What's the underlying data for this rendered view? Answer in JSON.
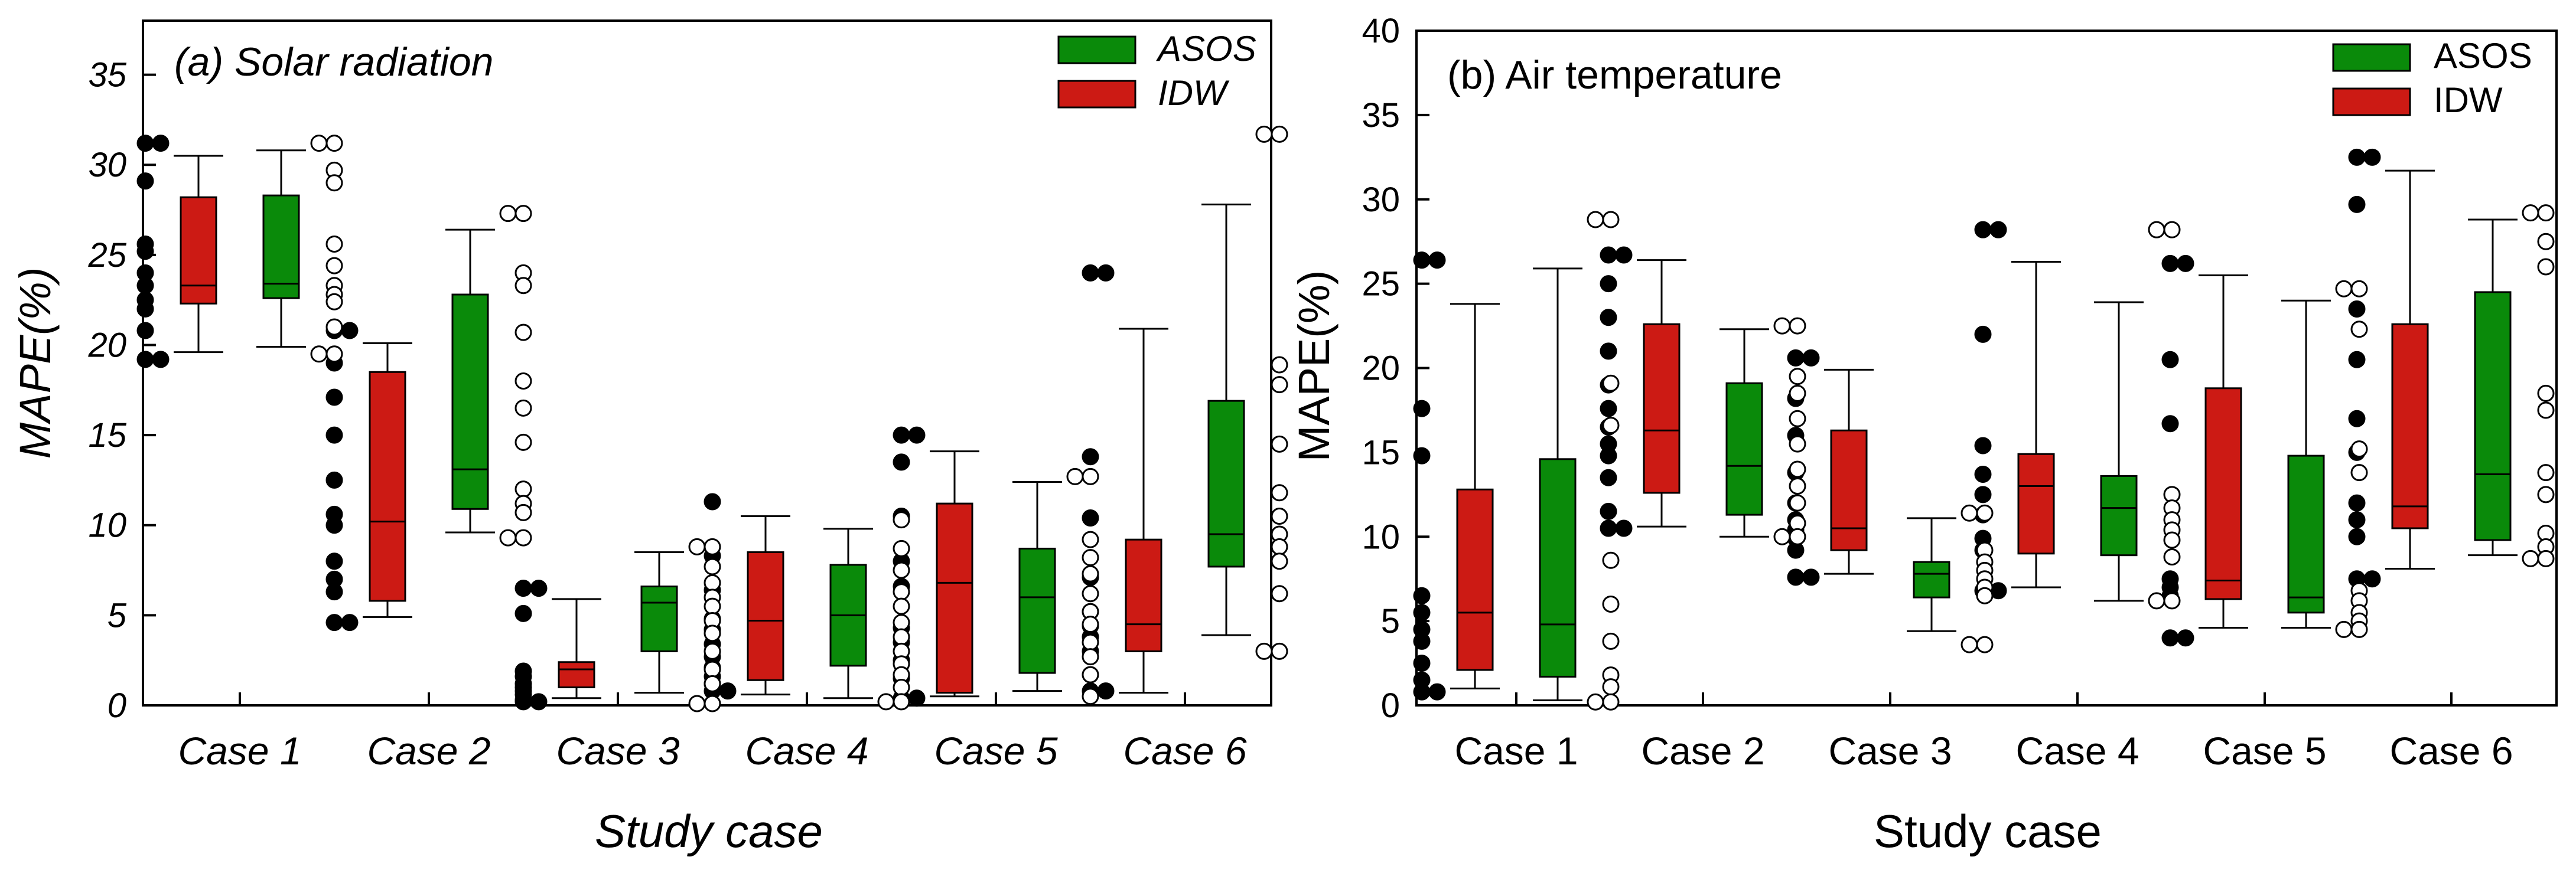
{
  "chart_data": [
    {
      "type": "boxplot",
      "title": "(a) Solar radiation",
      "xlabel": "Study case",
      "ylabel": "MAPE(%)",
      "ylim": [
        0,
        38
      ],
      "yticks": [
        0,
        5,
        10,
        15,
        20,
        25,
        30,
        35
      ],
      "categories": [
        "Case 1",
        "Case 2",
        "Case 3",
        "Case 4",
        "Case 5",
        "Case 6"
      ],
      "legend": [
        {
          "name": "ASOS",
          "color": "#0a8a0a"
        },
        {
          "name": "IDW",
          "color": "#cc1a14"
        }
      ],
      "series": [
        {
          "name": "IDW",
          "color": "#cc1a14",
          "marker": "filled",
          "boxes": [
            {
              "min": 19.6,
              "q1": 22.3,
              "median": 23.3,
              "q3": 28.2,
              "max": 30.5
            },
            {
              "min": 4.9,
              "q1": 5.8,
              "median": 10.2,
              "q3": 18.5,
              "max": 20.1
            },
            {
              "min": 0.4,
              "q1": 1.0,
              "median": 2.0,
              "q3": 2.4,
              "max": 5.9
            },
            {
              "min": 0.6,
              "q1": 1.4,
              "median": 4.7,
              "q3": 8.5,
              "max": 10.5
            },
            {
              "min": 0.5,
              "q1": 0.7,
              "median": 6.8,
              "q3": 11.2,
              "max": 14.1
            },
            {
              "min": 0.7,
              "q1": 3.0,
              "median": 4.5,
              "q3": 9.2,
              "max": 20.9
            }
          ],
          "points": [
            [
              31.2,
              31.2,
              29.1,
              25.6,
              25.2,
              24.0,
              23.3,
              22.5,
              22.0,
              20.8,
              19.2,
              19.2
            ],
            [
              20.8,
              20.8,
              19.0,
              17.1,
              15.0,
              12.5,
              10.6,
              10.0,
              8.0,
              7.0,
              6.3,
              4.6,
              4.6
            ],
            [
              6.5,
              6.5,
              5.1,
              1.9,
              1.6,
              1.2,
              1.0,
              0.8,
              0.6,
              0.3,
              0.2,
              0.2
            ],
            [
              11.3,
              8.3,
              6.4,
              4.8,
              4.2,
              3.4,
              2.7,
              2.1,
              1.6,
              1.2,
              0.8,
              0.8
            ],
            [
              15.0,
              15.0,
              13.5,
              10.5,
              8.0,
              6.6,
              4.3,
              3.5,
              2.5,
              1.5,
              0.4,
              0.4
            ],
            [
              24.0,
              24.0,
              13.8,
              10.4,
              7.1,
              5.2,
              4.4,
              3.8,
              3.0,
              1.7,
              0.8,
              0.8
            ]
          ]
        },
        {
          "name": "ASOS",
          "color": "#0a8a0a",
          "marker": "open",
          "boxes": [
            {
              "min": 19.9,
              "q1": 22.6,
              "median": 23.4,
              "q3": 28.3,
              "max": 30.8
            },
            {
              "min": 9.6,
              "q1": 10.9,
              "median": 13.1,
              "q3": 22.8,
              "max": 26.4
            },
            {
              "min": 0.7,
              "q1": 3.0,
              "median": 5.7,
              "q3": 6.6,
              "max": 8.5
            },
            {
              "min": 0.4,
              "q1": 2.2,
              "median": 5.0,
              "q3": 7.8,
              "max": 9.8
            },
            {
              "min": 0.8,
              "q1": 1.8,
              "median": 6.0,
              "q3": 8.7,
              "max": 12.4
            },
            {
              "min": 3.9,
              "q1": 7.7,
              "median": 9.5,
              "q3": 16.9,
              "max": 27.8
            }
          ],
          "points": [
            [
              31.2,
              31.2,
              29.7,
              29.0,
              25.6,
              24.4,
              23.3,
              22.8,
              22.4,
              21.0,
              19.5,
              19.5
            ],
            [
              27.3,
              27.3,
              24.0,
              23.3,
              20.7,
              18.0,
              16.5,
              14.6,
              12.0,
              11.2,
              10.7,
              9.3,
              9.3
            ],
            [
              8.8,
              8.8,
              7.7,
              6.8,
              6.0,
              5.5,
              4.7,
              4.0,
              3.0,
              2.0,
              1.2,
              0.1,
              0.1
            ],
            [
              10.3,
              8.7,
              7.5,
              6.3,
              5.5,
              4.6,
              3.8,
              3.0,
              2.3,
              1.7,
              1.0,
              0.2,
              0.2
            ],
            [
              12.7,
              12.7,
              9.2,
              8.2,
              7.3,
              6.2,
              5.2,
              4.5,
              3.5,
              2.7,
              1.7,
              0.5
            ],
            [
              31.7,
              31.7,
              18.9,
              17.8,
              14.5,
              11.8,
              10.5,
              9.5,
              8.8,
              8.0,
              6.2,
              3.0,
              3.0
            ]
          ]
        }
      ]
    },
    {
      "type": "boxplot",
      "title": "(b) Air temperature",
      "xlabel": "Study case",
      "ylabel": "MAPE(%)",
      "ylim": [
        0,
        40
      ],
      "yticks": [
        0,
        5,
        10,
        15,
        20,
        25,
        30,
        35,
        40
      ],
      "categories": [
        "Case 1",
        "Case 2",
        "Case 3",
        "Case 4",
        "Case 5",
        "Case 6"
      ],
      "legend": [
        {
          "name": "ASOS",
          "color": "#0a8a0a"
        },
        {
          "name": "IDW",
          "color": "#cc1a14"
        }
      ],
      "series": [
        {
          "name": "IDW",
          "color": "#cc1a14",
          "marker": "filled",
          "boxes": [
            {
              "min": 1.0,
              "q1": 2.1,
              "median": 5.5,
              "q3": 12.8,
              "max": 23.8
            },
            {
              "min": 10.6,
              "q1": 12.6,
              "median": 16.3,
              "q3": 22.6,
              "max": 26.4
            },
            {
              "min": 7.8,
              "q1": 9.2,
              "median": 10.5,
              "q3": 16.3,
              "max": 19.9
            },
            {
              "min": 7.0,
              "q1": 9.0,
              "median": 13.0,
              "q3": 14.9,
              "max": 26.3
            },
            {
              "min": 4.6,
              "q1": 6.3,
              "median": 7.4,
              "q3": 18.8,
              "max": 25.5
            },
            {
              "min": 8.1,
              "q1": 10.5,
              "median": 11.8,
              "q3": 22.6,
              "max": 31.7
            }
          ],
          "points": [
            [
              26.4,
              26.4,
              17.6,
              14.8,
              6.5,
              5.5,
              4.5,
              3.8,
              2.5,
              1.5,
              0.8,
              0.8
            ],
            [
              26.7,
              26.7,
              25.0,
              23.0,
              21.0,
              19.0,
              17.6,
              16.5,
              15.5,
              14.8,
              13.5,
              11.5,
              10.5,
              10.5
            ],
            [
              20.6,
              20.6,
              18.2,
              16.0,
              13.8,
              12.0,
              11.0,
              10.4,
              9.9,
              9.2,
              7.6,
              7.6
            ],
            [
              28.2,
              28.2,
              22.0,
              15.4,
              13.7,
              12.5,
              11.3,
              9.9,
              9.2,
              6.8,
              6.8
            ],
            [
              26.2,
              26.2,
              20.5,
              16.7,
              7.5,
              7.0,
              6.5,
              4.0,
              4.0
            ],
            [
              32.5,
              32.5,
              29.7,
              23.5,
              20.5,
              17.0,
              15.0,
              12.0,
              11.0,
              10.0,
              7.5,
              7.5
            ]
          ]
        },
        {
          "name": "ASOS",
          "color": "#0a8a0a",
          "marker": "open",
          "boxes": [
            {
              "min": 0.3,
              "q1": 1.7,
              "median": 4.8,
              "q3": 14.6,
              "max": 25.9
            },
            {
              "min": 10.0,
              "q1": 11.3,
              "median": 14.2,
              "q3": 19.1,
              "max": 22.3
            },
            {
              "min": 4.4,
              "q1": 6.4,
              "median": 7.8,
              "q3": 8.5,
              "max": 11.1
            },
            {
              "min": 6.2,
              "q1": 8.9,
              "median": 11.7,
              "q3": 13.6,
              "max": 23.9
            },
            {
              "min": 4.6,
              "q1": 5.5,
              "median": 6.4,
              "q3": 14.8,
              "max": 24.0
            },
            {
              "min": 8.9,
              "q1": 9.8,
              "median": 13.7,
              "q3": 24.5,
              "max": 28.8
            }
          ],
          "points": [
            [
              28.8,
              28.8,
              19.1,
              16.6,
              8.6,
              6.0,
              3.8,
              1.8,
              1.1,
              0.2,
              0.2
            ],
            [
              22.5,
              22.5,
              19.5,
              18.5,
              17.0,
              15.5,
              14.0,
              13.0,
              12.0,
              10.8,
              10.0,
              10.0
            ],
            [
              11.4,
              11.4,
              9.2,
              8.5,
              8.0,
              7.5,
              7.0,
              6.5,
              3.6,
              3.6
            ],
            [
              28.2,
              28.2,
              12.5,
              11.7,
              11.0,
              10.4,
              9.8,
              8.8,
              6.2,
              6.2
            ],
            [
              24.7,
              24.7,
              22.3,
              15.2,
              13.8,
              6.8,
              6.2,
              5.5,
              5.0,
              4.5,
              4.5
            ],
            [
              29.2,
              29.2,
              27.5,
              26.0,
              18.5,
              17.5,
              13.8,
              12.5,
              10.2,
              9.4,
              8.7,
              8.7
            ]
          ]
        }
      ]
    }
  ]
}
